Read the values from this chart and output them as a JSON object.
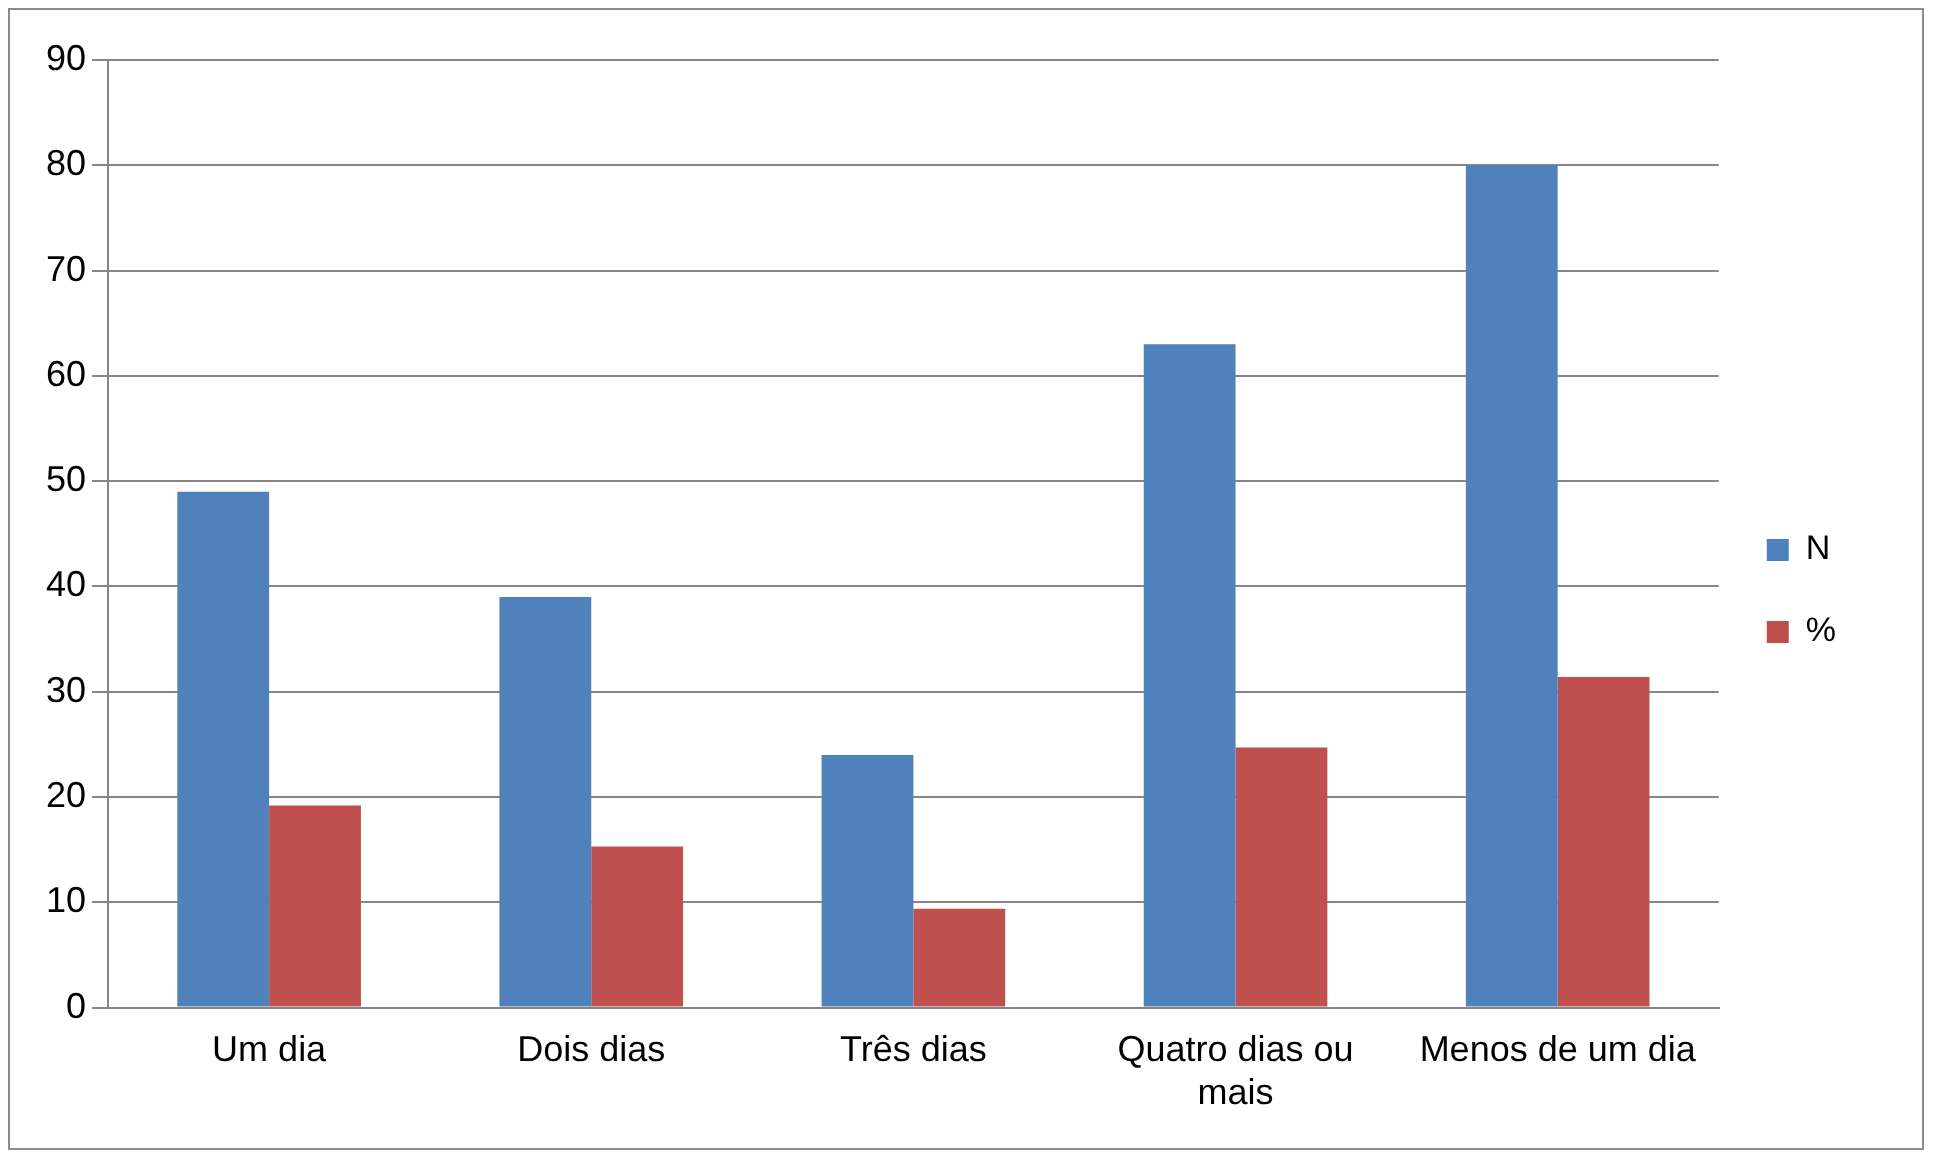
{
  "chart_data": {
    "type": "bar",
    "categories": [
      "Um dia",
      "Dois dias",
      "Três dias",
      "Quatro dias ou mais",
      "Menos de um dia"
    ],
    "series": [
      {
        "name": "N",
        "color": "#4f81bd",
        "values": [
          49,
          39,
          24,
          63,
          80
        ]
      },
      {
        "name": "%",
        "color": "#c0504d",
        "values": [
          19.2,
          15.3,
          9.4,
          24.7,
          31.4
        ]
      }
    ],
    "ylim": [
      0,
      90
    ],
    "yticks": [
      0,
      10,
      20,
      30,
      40,
      50,
      60,
      70,
      80,
      90
    ],
    "grid": "y",
    "legend": "right"
  }
}
